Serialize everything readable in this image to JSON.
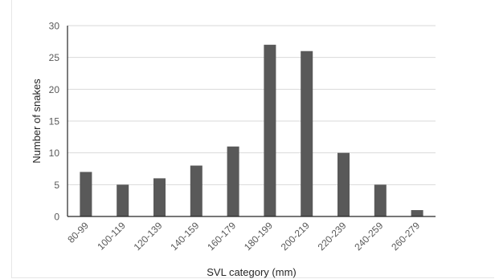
{
  "chart_data": {
    "type": "bar",
    "categories": [
      "80-99",
      "100-119",
      "120-139",
      "140-159",
      "160-179",
      "180-199",
      "200-219",
      "220-239",
      "240-259",
      "260-279"
    ],
    "values": [
      7,
      5,
      6,
      8,
      11,
      27,
      26,
      10,
      5,
      1
    ],
    "xlabel": "SVL category (mm)",
    "ylabel": "Number of snakes",
    "ylim": [
      0,
      30
    ],
    "yticks": [
      0,
      5,
      10,
      15,
      20,
      25,
      30
    ],
    "grid": true,
    "legend": "none",
    "bar_color": "#595959"
  }
}
